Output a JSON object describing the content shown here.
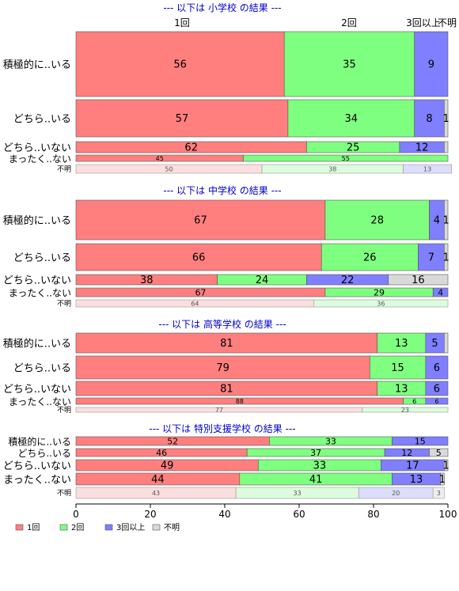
{
  "chart_data": {
    "type": "bar",
    "orientation": "horizontal",
    "stacked": "percent",
    "xlim": [
      0,
      100
    ],
    "x_ticks": [
      "0",
      "20",
      "40",
      "60",
      "80",
      "100"
    ],
    "series_names": [
      "1回",
      "2回",
      "3回以上",
      "不明"
    ],
    "colors": {
      "1回": "#ff7f7f",
      "2回": "#7fff7f",
      "3回以上": "#7f7fff",
      "不明": "#d9d9d9"
    },
    "top_column_labels": [
      "1回",
      "2回",
      "3回以上",
      "不明"
    ],
    "panels": [
      {
        "title": "--- 以下は 小学校 の結果 ---",
        "rows": [
          {
            "label": "積極的に..いる",
            "values": [
              56,
              35,
              9,
              0
            ],
            "labels": [
              "56",
              "35",
              "9",
              ""
            ]
          },
          {
            "label": "どちら..いる",
            "values": [
              57,
              34,
              8,
              1
            ],
            "labels": [
              "57",
              "34",
              "8",
              "1"
            ]
          },
          {
            "label": "どちら..いない",
            "values": [
              62,
              25,
              12,
              1
            ],
            "labels": [
              "62",
              "25",
              "12",
              ""
            ]
          },
          {
            "label": "まったく..ない",
            "values": [
              45,
              55,
              0,
              0
            ],
            "labels": [
              "45",
              "55",
              "",
              ""
            ]
          },
          {
            "label": "不明",
            "values": [
              50,
              38,
              13,
              0
            ],
            "labels": [
              "50",
              "38",
              "13",
              ""
            ],
            "faded": true
          }
        ]
      },
      {
        "title": "--- 以下は 中学校 の結果 ---",
        "rows": [
          {
            "label": "積極的に..いる",
            "values": [
              67,
              28,
              4,
              1
            ],
            "labels": [
              "67",
              "28",
              "4",
              "1"
            ]
          },
          {
            "label": "どちら..いる",
            "values": [
              66,
              26,
              7,
              1
            ],
            "labels": [
              "66",
              "26",
              "7",
              "1"
            ]
          },
          {
            "label": "どちら..いない",
            "values": [
              38,
              24,
              22,
              16
            ],
            "labels": [
              "38",
              "24",
              "22",
              "16"
            ]
          },
          {
            "label": "まったく..ない",
            "values": [
              67,
              29,
              4,
              0
            ],
            "labels": [
              "67",
              "29",
              "4",
              ""
            ]
          },
          {
            "label": "不明",
            "values": [
              64,
              36,
              0,
              0
            ],
            "labels": [
              "64",
              "36",
              "",
              ""
            ],
            "faded": true
          }
        ]
      },
      {
        "title": "--- 以下は 高等学校 の結果 ---",
        "rows": [
          {
            "label": "積極的に..いる",
            "values": [
              81,
              13,
              5,
              1
            ],
            "labels": [
              "81",
              "13",
              "5",
              ""
            ]
          },
          {
            "label": "どちら..いる",
            "values": [
              79,
              15,
              6,
              0
            ],
            "labels": [
              "79",
              "15",
              "6",
              ""
            ]
          },
          {
            "label": "どちら..いない",
            "values": [
              81,
              13,
              6,
              0
            ],
            "labels": [
              "81",
              "13",
              "6",
              ""
            ]
          },
          {
            "label": "まったく..ない",
            "values": [
              88,
              6,
              6,
              0
            ],
            "labels": [
              "88",
              "6",
              "6",
              ""
            ]
          },
          {
            "label": "不明",
            "values": [
              77,
              23,
              0,
              0
            ],
            "labels": [
              "77",
              "23",
              "",
              ""
            ],
            "faded": true
          }
        ]
      },
      {
        "title": "--- 以下は 特別支援学校 の結果 ---",
        "rows": [
          {
            "label": "積極的に..いる",
            "values": [
              52,
              33,
              15,
              0
            ],
            "labels": [
              "52",
              "33",
              "15",
              ""
            ]
          },
          {
            "label": "どちら..いる",
            "values": [
              46,
              37,
              12,
              5
            ],
            "labels": [
              "46",
              "37",
              "12",
              "5"
            ]
          },
          {
            "label": "どちら..いない",
            "values": [
              49,
              33,
              17,
              1
            ],
            "labels": [
              "49",
              "33",
              "17",
              "1"
            ]
          },
          {
            "label": "まったく..ない",
            "values": [
              44,
              41,
              13,
              1
            ],
            "labels": [
              "44",
              "41",
              "13",
              "1"
            ]
          },
          {
            "label": "不明",
            "values": [
              43,
              33,
              20,
              3
            ],
            "labels": [
              "43",
              "33",
              "20",
              "3"
            ],
            "faded": true
          }
        ]
      }
    ],
    "legend": [
      "1回",
      "2回",
      "3回以上",
      "不明"
    ],
    "legend_position": "bottom-left",
    "grid": false
  }
}
